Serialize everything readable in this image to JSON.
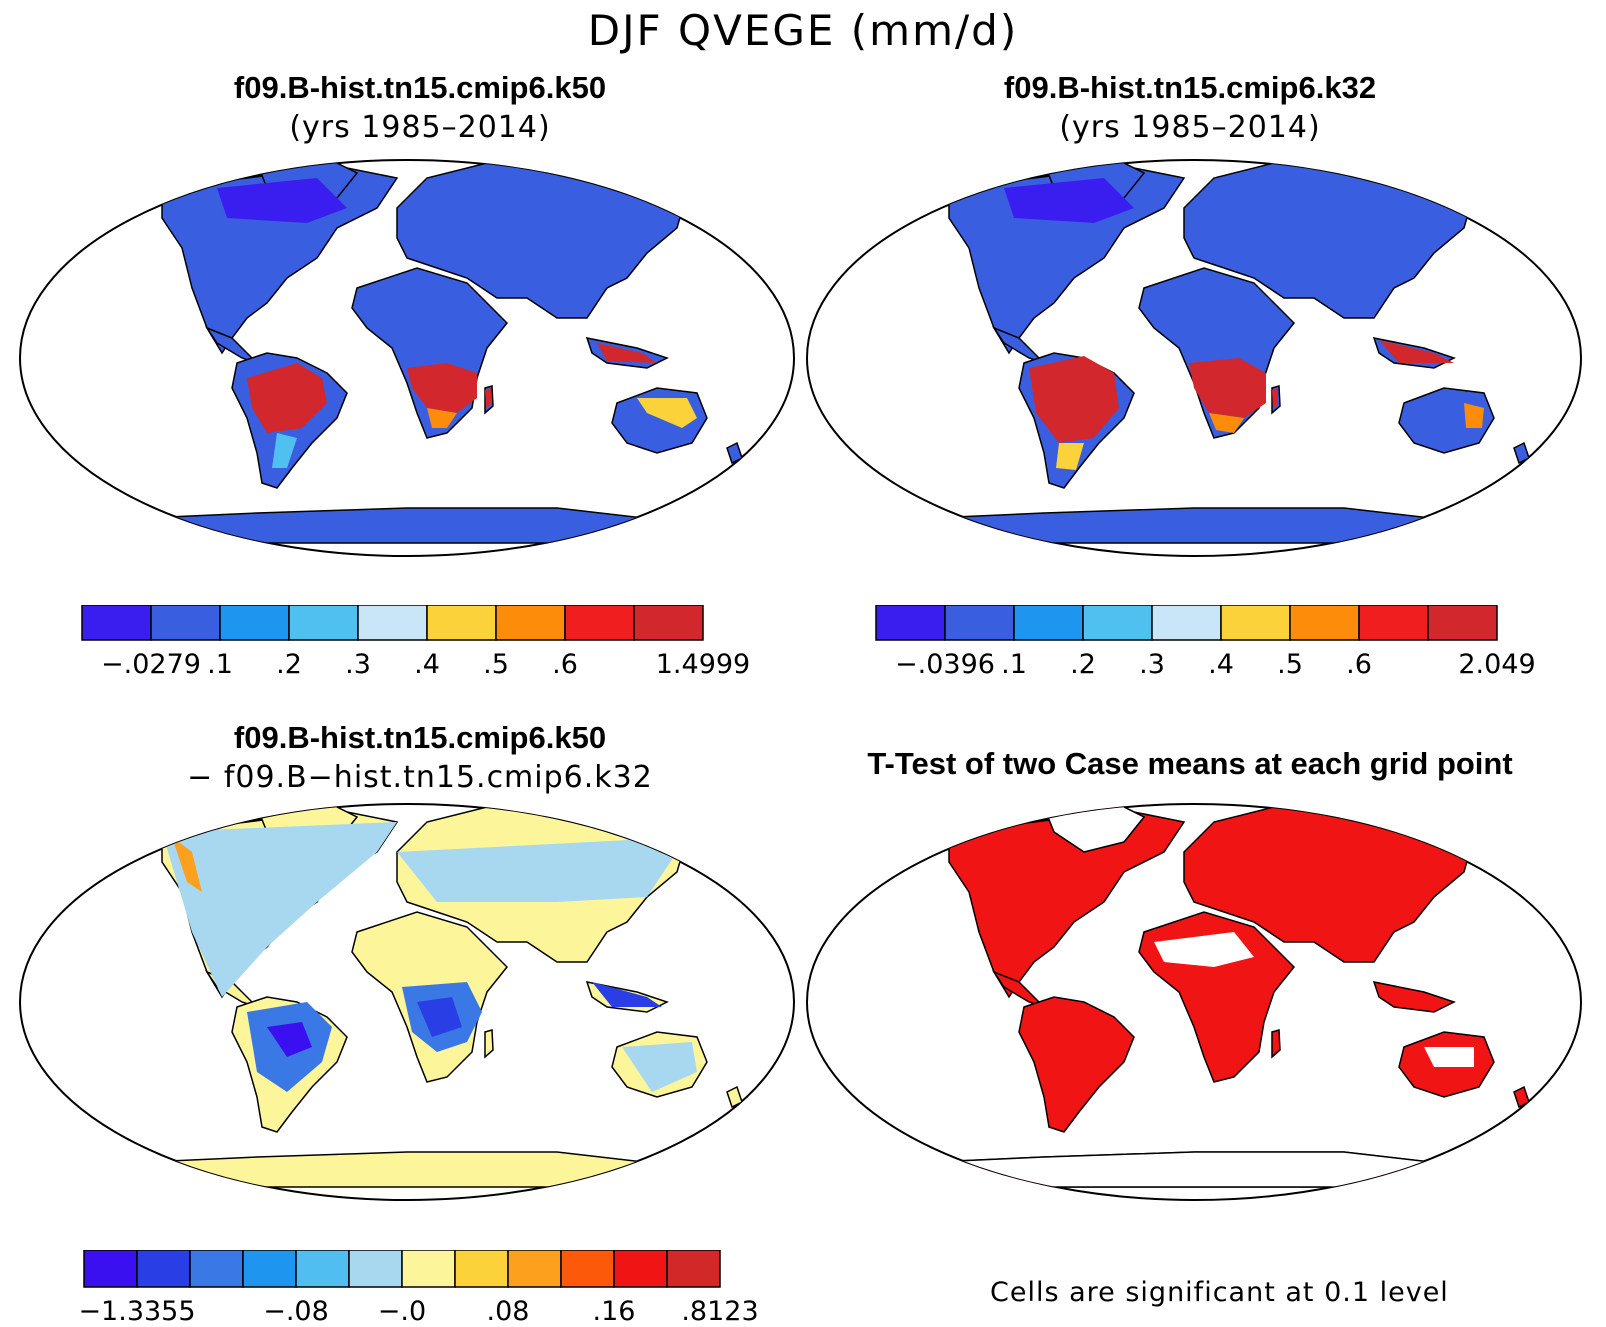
{
  "main_title": "DJF QVEGE (mm/d)",
  "panels": [
    {
      "title_line1": "f09.B-hist.tn15.cmip6.k50",
      "title_line2": "(yrs 1985–2014)",
      "colorbar": {
        "labels": [
          "−.0279",
          ".1",
          ".2",
          ".3",
          ".4",
          ".5",
          ".6",
          "1.4999"
        ],
        "colors": [
          "#3a1ef0",
          "#3a5ee0",
          "#1e96f0",
          "#50c0f0",
          "#c8e6f8",
          "#fcd23a",
          "#fc8c0a",
          "#f01e1e",
          "#d2282d"
        ]
      }
    },
    {
      "title_line1": "f09.B-hist.tn15.cmip6.k32",
      "title_line2": "(yrs 1985–2014)",
      "colorbar": {
        "labels": [
          "−.0396",
          ".1",
          ".2",
          ".3",
          ".4",
          ".5",
          ".6",
          "2.049"
        ],
        "colors": [
          "#3a1ef0",
          "#3a5ee0",
          "#1e96f0",
          "#50c0f0",
          "#c8e6f8",
          "#fcd23a",
          "#fc8c0a",
          "#f01e1e",
          "#d2282d"
        ]
      }
    },
    {
      "title_line1": "f09.B-hist.tn15.cmip6.k50",
      "title_line2": "− f09.B−hist.tn15.cmip6.k32",
      "colorbar": {
        "labels": [
          "−1.3355",
          "−.08",
          "−.0",
          ".08",
          ".16",
          ".8123"
        ],
        "colors": [
          "#3a10f0",
          "#2a3ee6",
          "#3a78e6",
          "#1e96f0",
          "#50bef0",
          "#a8d8f0",
          "#fcf59a",
          "#fcd23a",
          "#fca01e",
          "#fc5a0a",
          "#f01414",
          "#d22828"
        ]
      }
    },
    {
      "title_line1": "T-Test of two Case means at each grid point",
      "note": "Cells are significant at 0.1 level"
    }
  ]
}
